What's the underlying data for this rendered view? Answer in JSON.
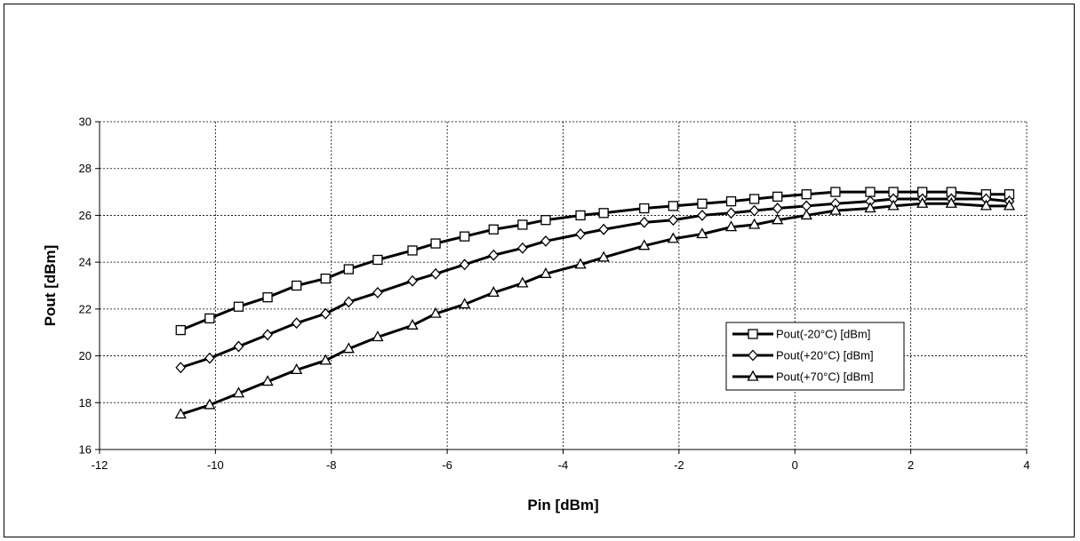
{
  "chart_data": {
    "type": "line",
    "title": "",
    "xlabel": "Pin [dBm]",
    "ylabel": "Pout [dBm]",
    "xlim": [
      -12,
      4
    ],
    "ylim": [
      16,
      30
    ],
    "xticks": [
      -12,
      -10,
      -8,
      -6,
      -4,
      -2,
      0,
      2,
      4
    ],
    "yticks": [
      16,
      18,
      20,
      22,
      24,
      26,
      28,
      30
    ],
    "x_tick_labels": [
      "-12",
      "-10",
      "-8",
      "-6",
      "-4",
      "-2",
      "0",
      "2",
      "4"
    ],
    "y_tick_labels": [
      "16",
      "18",
      "20",
      "22",
      "24",
      "26",
      "28",
      "30"
    ],
    "grid": true,
    "legend_position": "right",
    "colors": {
      "line": "#000000",
      "grid": "#000000",
      "marker_fill": "#ffffff"
    },
    "x": [
      -10.6,
      -10.1,
      -9.6,
      -9.1,
      -8.6,
      -8.1,
      -7.7,
      -7.2,
      -6.6,
      -6.2,
      -5.7,
      -5.2,
      -4.7,
      -4.3,
      -3.7,
      -3.3,
      -2.6,
      -2.1,
      -1.6,
      -1.1,
      -0.7,
      -0.3,
      0.2,
      0.7,
      1.3,
      1.7,
      2.2,
      2.7,
      3.3,
      3.7
    ],
    "series": [
      {
        "name": "Pout(-20°C) [dBm]",
        "marker": "square",
        "values": [
          21.1,
          21.6,
          22.1,
          22.5,
          23.0,
          23.3,
          23.7,
          24.1,
          24.5,
          24.8,
          25.1,
          25.4,
          25.6,
          25.8,
          26.0,
          26.1,
          26.3,
          26.4,
          26.5,
          26.6,
          26.7,
          26.8,
          26.9,
          27.0,
          27.0,
          27.0,
          27.0,
          27.0,
          26.9,
          26.9
        ]
      },
      {
        "name": "Pout(+20°C) [dBm]",
        "marker": "diamond",
        "values": [
          19.5,
          19.9,
          20.4,
          20.9,
          21.4,
          21.8,
          22.3,
          22.7,
          23.2,
          23.5,
          23.9,
          24.3,
          24.6,
          24.9,
          25.2,
          25.4,
          25.7,
          25.8,
          26.0,
          26.1,
          26.2,
          26.3,
          26.4,
          26.5,
          26.6,
          26.7,
          26.7,
          26.7,
          26.7,
          26.6
        ]
      },
      {
        "name": "Pout(+70°C) [dBm]",
        "marker": "triangle",
        "values": [
          17.5,
          17.9,
          18.4,
          18.9,
          19.4,
          19.8,
          20.3,
          20.8,
          21.3,
          21.8,
          22.2,
          22.7,
          23.1,
          23.5,
          23.9,
          24.2,
          24.7,
          25.0,
          25.2,
          25.5,
          25.6,
          25.8,
          26.0,
          26.2,
          26.3,
          26.4,
          26.5,
          26.5,
          26.4,
          26.4
        ]
      }
    ]
  }
}
